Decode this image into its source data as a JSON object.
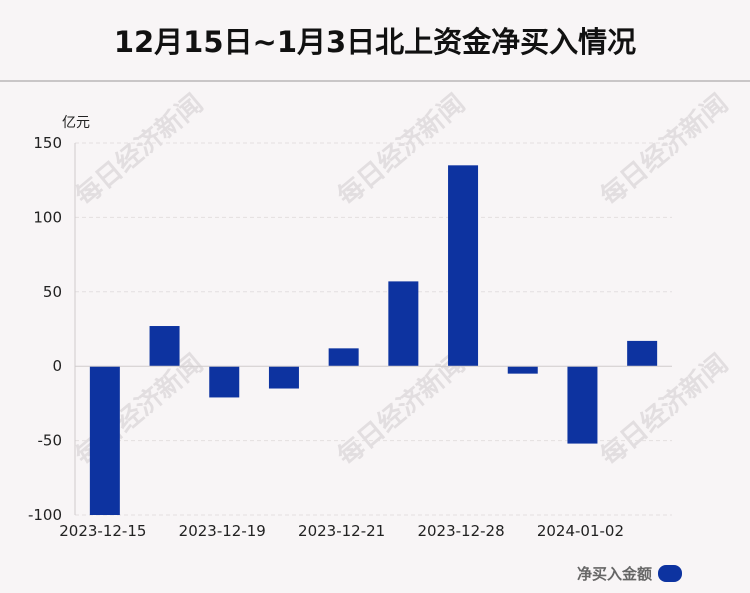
{
  "title": "12月15日~1月3日北上资金净买入情况",
  "watermark_text": "每日经济新闻",
  "colors": {
    "bar": "#0d33a0",
    "background": "#f8f5f6"
  },
  "chart_data": {
    "type": "bar",
    "ylabel": "亿元",
    "ylim": [
      -100,
      150
    ],
    "yticks": [
      150,
      100,
      50,
      0,
      -50,
      -100
    ],
    "grid": true,
    "legend_position": "bottom-right",
    "x_tick_labels": [
      "2023-12-15",
      "2023-12-19",
      "2023-12-21",
      "2023-12-28",
      "2024-01-02"
    ],
    "series": [
      {
        "name": "净买入金额",
        "values": [
          -100,
          27,
          -21,
          -15,
          12,
          57,
          135,
          -5,
          -52,
          17
        ]
      }
    ]
  }
}
